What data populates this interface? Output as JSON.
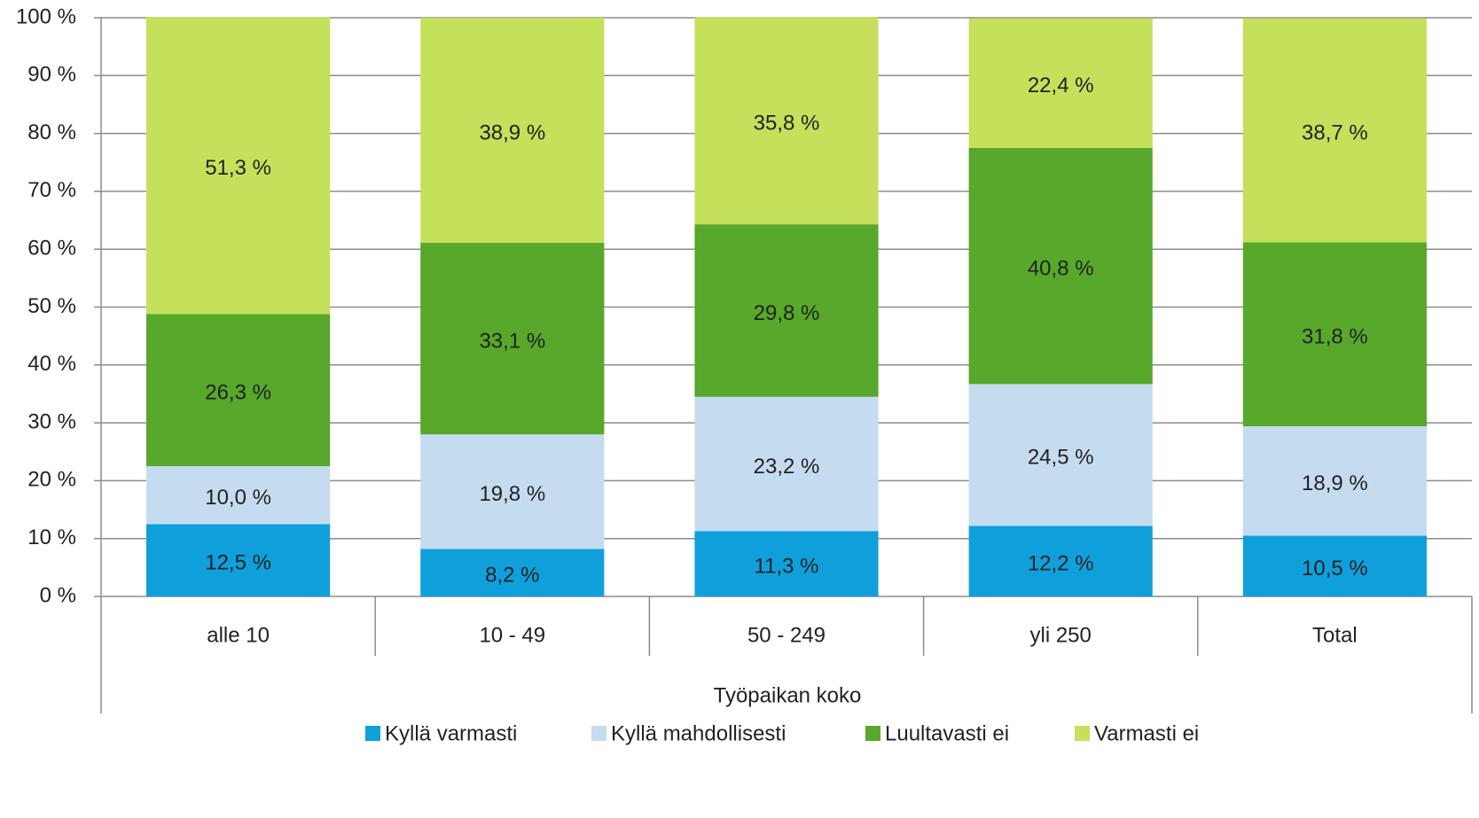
{
  "chart_data": {
    "type": "stacked_bar",
    "x_label": "Työpaikan koko",
    "categories": [
      "alle 10",
      "10 - 49",
      "50 - 249",
      "yli 250",
      "Total"
    ],
    "series": [
      {
        "name": "Kyllä varmasti",
        "color": "#0fa0dc",
        "values": [
          12.5,
          8.2,
          11.3,
          12.2,
          10.5
        ],
        "value_labels": [
          "12,5 %",
          "8,2 %",
          "11,3 %",
          "12,2 %",
          "10,5 %"
        ]
      },
      {
        "name": "Kyllä mahdollisesti",
        "color": "#c5dcf0",
        "values": [
          10.0,
          19.8,
          23.2,
          24.5,
          18.9
        ],
        "value_labels": [
          "10,0 %",
          "19,8 %",
          "23,2 %",
          "24,5 %",
          "18,9 %"
        ]
      },
      {
        "name": "Luultavasti ei",
        "color": "#57a82b",
        "values": [
          26.3,
          33.1,
          29.8,
          40.8,
          31.8
        ],
        "value_labels": [
          "26,3 %",
          "33,1 %",
          "29,8 %",
          "40,8 %",
          "31,8 %"
        ]
      },
      {
        "name": "Varmasti ei",
        "color": "#c5e05a",
        "values": [
          51.3,
          38.9,
          35.8,
          22.4,
          38.7
        ],
        "value_labels": [
          "51,3 %",
          "38,9 %",
          "35,8 %",
          "22,4 %",
          "38,7 %"
        ]
      }
    ],
    "ylim": [
      0,
      100
    ],
    "yticks": [
      {
        "value": 0,
        "label": "0 %"
      },
      {
        "value": 10,
        "label": "10 %"
      },
      {
        "value": 20,
        "label": "20 %"
      },
      {
        "value": 30,
        "label": "30 %"
      },
      {
        "value": 40,
        "label": "40 %"
      },
      {
        "value": 50,
        "label": "50 %"
      },
      {
        "value": 60,
        "label": "60 %"
      },
      {
        "value": 70,
        "label": "70 %"
      },
      {
        "value": 80,
        "label": "80 %"
      },
      {
        "value": 90,
        "label": "90 %"
      },
      {
        "value": 100,
        "label": "100 %"
      }
    ],
    "grid": true,
    "legend": "bottom"
  }
}
